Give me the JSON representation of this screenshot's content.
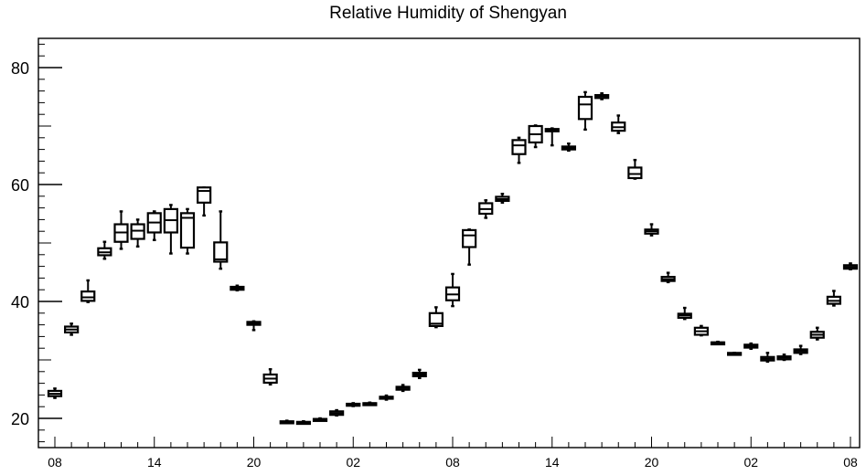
{
  "chart_data": {
    "type": "box",
    "title": "Relative Humidity of Shengyan",
    "xlabel": "",
    "ylabel": "",
    "ylim": [
      15,
      85
    ],
    "y_ticks": [
      20,
      40,
      60,
      80
    ],
    "x_tick_labels": [
      "08",
      "14",
      "20",
      "02",
      "08",
      "14",
      "20",
      "02",
      "08"
    ],
    "x_tick_hours": [
      0,
      6,
      12,
      18,
      24,
      30,
      36,
      42,
      48
    ],
    "grid": false,
    "legend": "none",
    "boxes": [
      {
        "x": 0,
        "min": 23.5,
        "q1": 23.8,
        "median": 24.2,
        "q3": 24.7,
        "max": 25.1
      },
      {
        "x": 1,
        "min": 34.3,
        "q1": 34.7,
        "median": 35.2,
        "q3": 35.7,
        "max": 36.2
      },
      {
        "x": 2,
        "min": 39.9,
        "q1": 40.1,
        "median": 40.7,
        "q3": 41.7,
        "max": 43.6
      },
      {
        "x": 3,
        "min": 47.3,
        "q1": 47.9,
        "median": 48.4,
        "q3": 49.1,
        "max": 50.2
      },
      {
        "x": 4,
        "min": 49.0,
        "q1": 50.2,
        "median": 51.8,
        "q3": 53.2,
        "max": 55.4
      },
      {
        "x": 5,
        "min": 49.4,
        "q1": 50.7,
        "median": 52.1,
        "q3": 53.2,
        "max": 54.0
      },
      {
        "x": 6,
        "min": 50.5,
        "q1": 51.8,
        "median": 53.5,
        "q3": 55.1,
        "max": 55.4
      },
      {
        "x": 7,
        "min": 48.2,
        "q1": 51.8,
        "median": 53.9,
        "q3": 55.8,
        "max": 56.5
      },
      {
        "x": 8,
        "min": 48.2,
        "q1": 49.2,
        "median": 54.3,
        "q3": 55.1,
        "max": 55.8
      },
      {
        "x": 9,
        "min": 54.7,
        "q1": 56.9,
        "median": 58.9,
        "q3": 59.5,
        "max": 59.5
      },
      {
        "x": 10,
        "min": 45.6,
        "q1": 46.8,
        "median": 47.2,
        "q3": 50.1,
        "max": 55.4
      },
      {
        "x": 11,
        "min": 41.9,
        "q1": 42.0,
        "median": 42.2,
        "q3": 42.5,
        "max": 42.7
      },
      {
        "x": 12,
        "min": 35.1,
        "q1": 36.0,
        "median": 36.3,
        "q3": 36.5,
        "max": 36.6
      },
      {
        "x": 13,
        "min": 25.8,
        "q1": 26.1,
        "median": 26.8,
        "q3": 27.5,
        "max": 28.4
      },
      {
        "x": 14,
        "min": 19.2,
        "q1": 19.3,
        "median": 19.4,
        "q3": 19.5,
        "max": 19.6
      },
      {
        "x": 15,
        "min": 19.1,
        "q1": 19.2,
        "median": 19.3,
        "q3": 19.4,
        "max": 19.5
      },
      {
        "x": 16,
        "min": 19.7,
        "q1": 19.8,
        "median": 19.9,
        "q3": 19.9,
        "max": 20.0
      },
      {
        "x": 17,
        "min": 20.5,
        "q1": 20.6,
        "median": 20.9,
        "q3": 21.2,
        "max": 21.4
      },
      {
        "x": 18,
        "min": 22.1,
        "q1": 22.2,
        "median": 22.4,
        "q3": 22.5,
        "max": 22.6
      },
      {
        "x": 19,
        "min": 22.4,
        "q1": 22.5,
        "median": 22.6,
        "q3": 22.6,
        "max": 22.7
      },
      {
        "x": 20,
        "min": 23.2,
        "q1": 23.4,
        "median": 23.5,
        "q3": 23.7,
        "max": 23.9
      },
      {
        "x": 21,
        "min": 24.7,
        "q1": 24.9,
        "median": 25.2,
        "q3": 25.4,
        "max": 25.7
      },
      {
        "x": 22,
        "min": 26.9,
        "q1": 27.2,
        "median": 27.5,
        "q3": 27.8,
        "max": 28.3
      },
      {
        "x": 23,
        "min": 35.6,
        "q1": 35.8,
        "median": 36.2,
        "q3": 38.0,
        "max": 39.0
      },
      {
        "x": 24,
        "min": 39.2,
        "q1": 40.2,
        "median": 41.2,
        "q3": 42.4,
        "max": 44.7
      },
      {
        "x": 25,
        "min": 46.3,
        "q1": 49.3,
        "median": 51.3,
        "q3": 52.2,
        "max": 52.3
      },
      {
        "x": 26,
        "min": 54.3,
        "q1": 55.0,
        "median": 55.8,
        "q3": 56.8,
        "max": 57.3
      },
      {
        "x": 27,
        "min": 56.9,
        "q1": 57.2,
        "median": 57.5,
        "q3": 57.9,
        "max": 58.4
      },
      {
        "x": 28,
        "min": 63.7,
        "q1": 65.2,
        "median": 66.7,
        "q3": 67.6,
        "max": 68.0
      },
      {
        "x": 29,
        "min": 66.4,
        "q1": 67.2,
        "median": 68.6,
        "q3": 70.0,
        "max": 70.1
      },
      {
        "x": 30,
        "min": 66.7,
        "q1": 69.1,
        "median": 69.3,
        "q3": 69.5,
        "max": 69.6
      },
      {
        "x": 31,
        "min": 65.8,
        "q1": 66.0,
        "median": 66.2,
        "q3": 66.5,
        "max": 67.0
      },
      {
        "x": 32,
        "min": 69.4,
        "q1": 71.2,
        "median": 73.7,
        "q3": 75.0,
        "max": 75.8
      },
      {
        "x": 33,
        "min": 74.6,
        "q1": 74.8,
        "median": 75.1,
        "q3": 75.3,
        "max": 75.6
      },
      {
        "x": 34,
        "min": 68.8,
        "q1": 69.2,
        "median": 69.8,
        "q3": 70.6,
        "max": 71.8
      },
      {
        "x": 35,
        "min": 61.0,
        "q1": 61.1,
        "median": 61.8,
        "q3": 62.9,
        "max": 64.2
      },
      {
        "x": 36,
        "min": 51.3,
        "q1": 51.6,
        "median": 52.0,
        "q3": 52.3,
        "max": 53.2
      },
      {
        "x": 37,
        "min": 43.3,
        "q1": 43.5,
        "median": 43.8,
        "q3": 44.2,
        "max": 44.9
      },
      {
        "x": 38,
        "min": 37.0,
        "q1": 37.2,
        "median": 37.6,
        "q3": 37.9,
        "max": 38.9
      },
      {
        "x": 39,
        "min": 34.2,
        "q1": 34.3,
        "median": 34.9,
        "q3": 35.5,
        "max": 35.8
      },
      {
        "x": 40,
        "min": 32.8,
        "q1": 32.9,
        "median": 33.0,
        "q3": 33.0,
        "max": 33.1
      },
      {
        "x": 41,
        "min": 31.0,
        "q1": 31.0,
        "median": 31.1,
        "q3": 31.2,
        "max": 31.2
      },
      {
        "x": 42,
        "min": 31.9,
        "q1": 32.1,
        "median": 32.4,
        "q3": 32.6,
        "max": 32.8
      },
      {
        "x": 43,
        "min": 29.7,
        "q1": 29.9,
        "median": 30.2,
        "q3": 30.5,
        "max": 31.2
      },
      {
        "x": 44,
        "min": 30.0,
        "q1": 30.1,
        "median": 30.4,
        "q3": 30.6,
        "max": 30.9
      },
      {
        "x": 45,
        "min": 31.0,
        "q1": 31.2,
        "median": 31.5,
        "q3": 31.8,
        "max": 32.4
      },
      {
        "x": 46,
        "min": 33.5,
        "q1": 33.8,
        "median": 34.3,
        "q3": 34.8,
        "max": 35.5
      },
      {
        "x": 47,
        "min": 39.3,
        "q1": 39.6,
        "median": 40.1,
        "q3": 40.8,
        "max": 41.8
      },
      {
        "x": 48,
        "min": 45.5,
        "q1": 45.6,
        "median": 45.9,
        "q3": 46.2,
        "max": 46.5
      }
    ]
  }
}
